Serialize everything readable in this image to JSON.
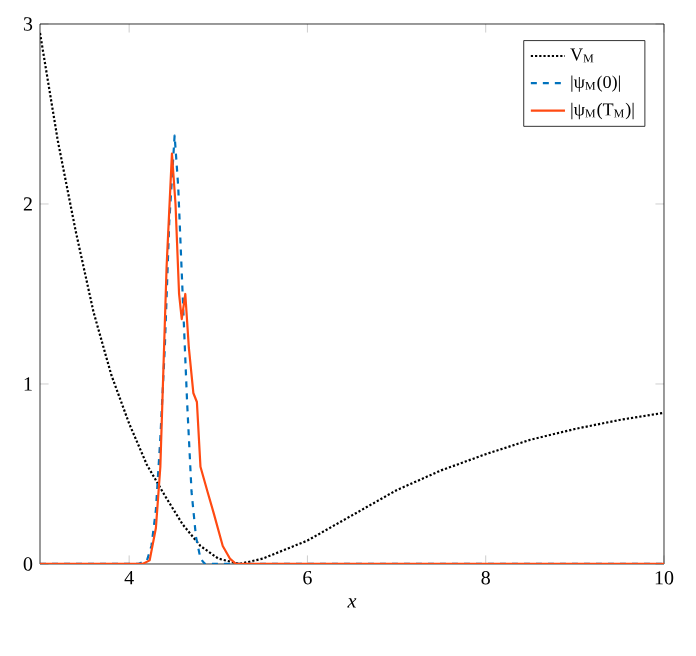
{
  "chart_data": {
    "type": "line",
    "xlabel": "x",
    "xlim": [
      3,
      10
    ],
    "ylim": [
      0,
      3
    ],
    "xticks": [
      4,
      6,
      8,
      10
    ],
    "yticks": [
      0,
      1,
      2,
      3
    ],
    "grid": false,
    "legend": "top right",
    "marker": "none",
    "series": [
      {
        "name": "V$_{M}$",
        "color": "#000000",
        "line_style": "dotted",
        "x": [
          3,
          3.2,
          3.4,
          3.6,
          3.8,
          4.0,
          4.2,
          4.4,
          4.6,
          4.8,
          5.0,
          5.24,
          5.5,
          6,
          6.5,
          7,
          7.5,
          8,
          8.5,
          9,
          9.5,
          10
        ],
        "values": [
          2.95,
          2.35,
          1.85,
          1.4,
          1.05,
          0.78,
          0.55,
          0.38,
          0.22,
          0.1,
          0.03,
          0,
          0.03,
          0.13,
          0.27,
          0.41,
          0.52,
          0.61,
          0.69,
          0.75,
          0.8,
          0.84
        ]
      },
      {
        "name": "|ψ$_{M}$(0)|",
        "color": "#0072bd",
        "line_style": "dashed",
        "x": [
          3,
          4.1,
          4.2,
          4.25,
          4.3,
          4.35,
          4.4,
          4.45,
          4.51,
          4.55,
          4.6,
          4.65,
          4.7,
          4.75,
          4.8,
          4.85,
          10
        ],
        "values": [
          0,
          0,
          0.02,
          0.1,
          0.3,
          0.7,
          1.2,
          1.9,
          2.38,
          2.1,
          1.5,
          0.9,
          0.4,
          0.15,
          0.03,
          0,
          0
        ]
      },
      {
        "name": "|ψ$_{M}$(T$_{M}$)|",
        "color": "#ff4a12",
        "line_style": "solid",
        "x": [
          3,
          4.15,
          4.23,
          4.3,
          4.35,
          4.42,
          4.48,
          4.52,
          4.56,
          4.59,
          4.63,
          4.67,
          4.72,
          4.76,
          4.8,
          4.88,
          4.95,
          5.05,
          5.13,
          5.2,
          10
        ],
        "values": [
          0,
          0,
          0.02,
          0.2,
          0.54,
          1.65,
          2.28,
          2.0,
          1.5,
          1.36,
          1.5,
          1.2,
          0.95,
          0.9,
          0.54,
          0.4,
          0.28,
          0.1,
          0.03,
          0,
          0
        ]
      }
    ]
  }
}
